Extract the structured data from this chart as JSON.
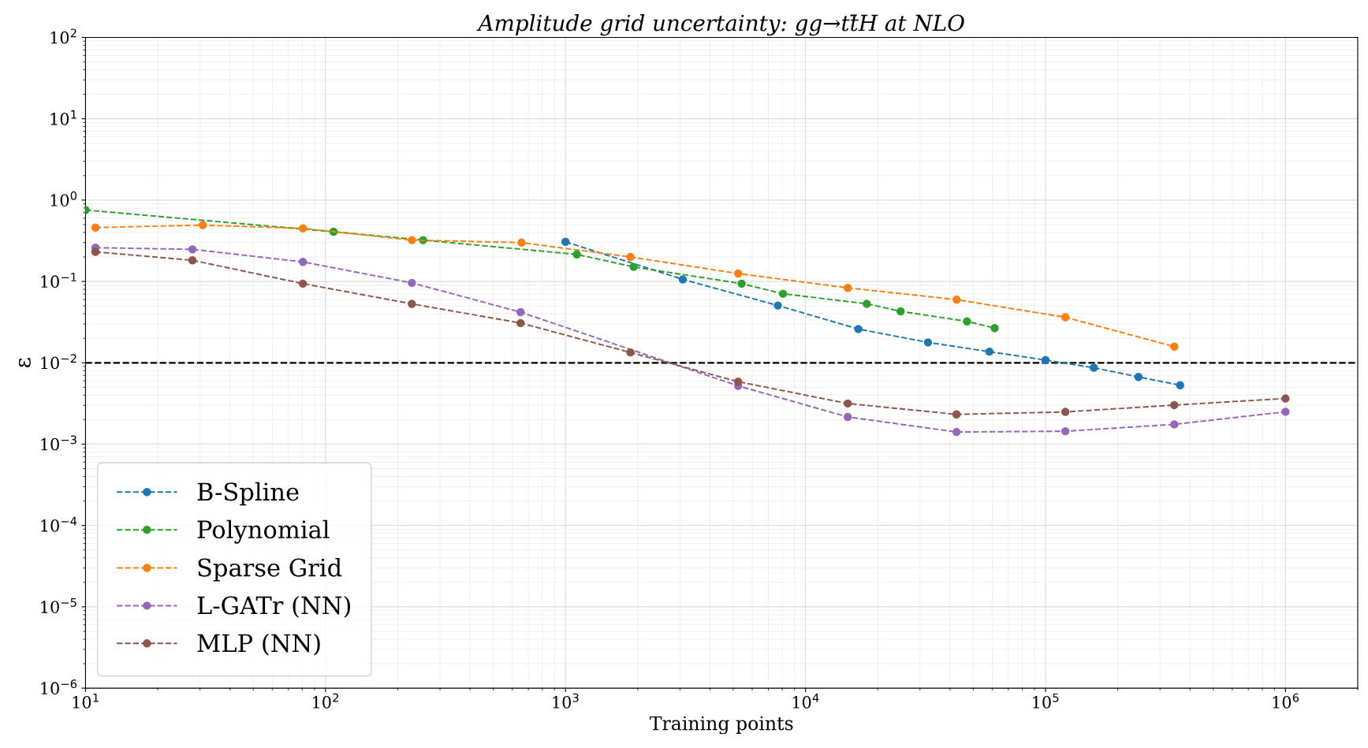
{
  "chart_data": {
    "type": "line",
    "title": "Amplitude grid uncertainty: gg→tt̄H at NLO",
    "xlabel": "Training points",
    "ylabel": "ε",
    "log": "xy",
    "grid": true,
    "legend": "bottom left",
    "marker": "circle",
    "line_style": "dashed",
    "xlim": [
      10,
      2000000
    ],
    "xticks": [
      {
        "value": 10,
        "label": "10$^{1}$"
      },
      {
        "value": 100,
        "label": "10$^{2}$"
      },
      {
        "value": 1000,
        "label": "10$^{3}$"
      },
      {
        "value": 10000,
        "label": "10$^{4}$"
      },
      {
        "value": 100000,
        "label": "10$^{5}$"
      },
      {
        "value": 1000000,
        "label": "10$^{6}$"
      }
    ],
    "ylim": [
      1e-06,
      100
    ],
    "yticks": [
      {
        "value": 1e-06,
        "label": "10$^{−6}$"
      },
      {
        "value": 1e-05,
        "label": "10$^{−5}$"
      },
      {
        "value": 0.0001,
        "label": "10$^{−4}$"
      },
      {
        "value": 0.001,
        "label": "10$^{−3}$"
      },
      {
        "value": 0.01,
        "label": "10$^{−2}$"
      },
      {
        "value": 0.1,
        "label": "10$^{−1}$"
      },
      {
        "value": 1,
        "label": "10$^{0}$"
      },
      {
        "value": 10,
        "label": "10$^{1}$"
      },
      {
        "value": 100,
        "label": "10$^{2}$"
      }
    ],
    "ref_lines": [
      {
        "axis": "y",
        "value": 0.01,
        "color": "#000000",
        "line_style": "dashed"
      }
    ],
    "series": [
      {
        "name": "B-Spline",
        "color": "#1f77b4",
        "x": [
          1000,
          3080,
          7670,
          16600,
          32400,
          58400,
          100000,
          159000,
          244000,
          364000
        ],
        "values": [
          0.307,
          0.106,
          0.0506,
          0.026,
          0.0178,
          0.0137,
          0.0108,
          0.0087,
          0.0067,
          0.0053
        ]
      },
      {
        "name": "Polynomial",
        "color": "#2ca02c",
        "x": [
          10,
          108,
          255,
          1115,
          1923,
          5420,
          8060,
          18000,
          24900,
          47100,
          61400
        ],
        "values": [
          0.755,
          0.408,
          0.322,
          0.215,
          0.151,
          0.094,
          0.0706,
          0.0531,
          0.0429,
          0.0323,
          0.0267
        ]
      },
      {
        "name": "Sparse Grid",
        "color": "#ff7f0e",
        "x": [
          11,
          30.8,
          80.5,
          229,
          656,
          1864,
          5240,
          15000,
          42600,
          121000,
          344000
        ],
        "values": [
          0.459,
          0.493,
          0.449,
          0.322,
          0.3,
          0.2,
          0.125,
          0.0834,
          0.0598,
          0.0363,
          0.0158
        ]
      },
      {
        "name": "L-GATr (NN)",
        "color": "#9467bd",
        "x": [
          11,
          27.9,
          80.5,
          229,
          650,
          5240,
          15000,
          42600,
          121000,
          344000,
          1000000
        ],
        "values": [
          0.26,
          0.248,
          0.174,
          0.096,
          0.0419,
          0.0052,
          0.00216,
          0.00141,
          0.00144,
          0.00175,
          0.0025
        ]
      },
      {
        "name": "MLP (NN)",
        "color": "#8c564b",
        "x": [
          11,
          27.9,
          80.5,
          229,
          650,
          1864,
          5240,
          15000,
          42600,
          121000,
          344000,
          1000000
        ],
        "values": [
          0.231,
          0.182,
          0.094,
          0.053,
          0.0308,
          0.0134,
          0.00585,
          0.00316,
          0.00232,
          0.00249,
          0.00302,
          0.00364
        ]
      }
    ]
  }
}
